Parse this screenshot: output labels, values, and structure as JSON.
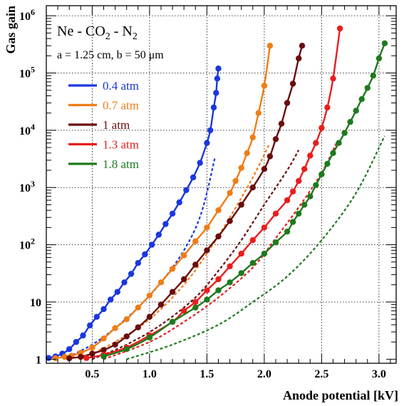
{
  "chart_data": {
    "type": "line",
    "annotation_title_parts": [
      "Ne - CO",
      "2",
      " - N",
      "2"
    ],
    "annotation_params": "a = 1.25 cm, b = 50 μm",
    "xlabel": "Anode potential [kV]",
    "ylabel": "Gas gain",
    "xlim": [
      0.1,
      3.15
    ],
    "ylim": [
      0.85,
      1500000
    ],
    "y_scale": "log",
    "grid": true,
    "legend_position": "top-left",
    "x_ticks": [
      "0.5",
      "1.0",
      "1.5",
      "2.0",
      "2.5",
      "3.0"
    ],
    "x_tick_values": [
      0.5,
      1.0,
      1.5,
      2.0,
      2.5,
      3.0
    ],
    "y_ticks": [
      {
        "value": 1,
        "base": "1",
        "exp": ""
      },
      {
        "value": 10,
        "base": "10",
        "exp": ""
      },
      {
        "value": 100,
        "base": "10",
        "exp": "2"
      },
      {
        "value": 1000,
        "base": "10",
        "exp": "3"
      },
      {
        "value": 10000,
        "base": "10",
        "exp": "4"
      },
      {
        "value": 100000,
        "base": "10",
        "exp": "5"
      },
      {
        "value": 1000000,
        "base": "10",
        "exp": "6"
      }
    ],
    "series": [
      {
        "name": "0.4 atm",
        "color": "#1a37e0",
        "points": [
          [
            0.12,
            1.05
          ],
          [
            0.18,
            1.12
          ],
          [
            0.24,
            1.25
          ],
          [
            0.3,
            1.5
          ],
          [
            0.36,
            2.0
          ],
          [
            0.42,
            2.6
          ],
          [
            0.48,
            3.9
          ],
          [
            0.54,
            5.5
          ],
          [
            0.6,
            7.5
          ],
          [
            0.66,
            11
          ],
          [
            0.72,
            15
          ],
          [
            0.78,
            22
          ],
          [
            0.84,
            31
          ],
          [
            0.9,
            48
          ],
          [
            0.96,
            68
          ],
          [
            1.02,
            100
          ],
          [
            1.08,
            150
          ],
          [
            1.14,
            230
          ],
          [
            1.2,
            350
          ],
          [
            1.26,
            550
          ],
          [
            1.32,
            900
          ],
          [
            1.38,
            1500
          ],
          [
            1.44,
            2700
          ],
          [
            1.5,
            6000
          ],
          [
            1.53,
            10000
          ],
          [
            1.56,
            25000
          ],
          [
            1.58,
            45000
          ],
          [
            1.59,
            80000
          ],
          [
            1.6,
            120000
          ]
        ],
        "dashed_fit": [
          [
            0.25,
            1.0
          ],
          [
            0.5,
            1.8
          ],
          [
            0.7,
            3.5
          ],
          [
            0.9,
            8
          ],
          [
            1.1,
            22
          ],
          [
            1.3,
            80
          ],
          [
            1.45,
            350
          ],
          [
            1.57,
            3300
          ]
        ]
      },
      {
        "name": "0.7 atm",
        "color": "#f07d16",
        "points": [
          [
            0.18,
            1.04
          ],
          [
            0.26,
            1.1
          ],
          [
            0.32,
            1.15
          ],
          [
            0.4,
            1.3
          ],
          [
            0.5,
            1.6
          ],
          [
            0.6,
            2.3
          ],
          [
            0.7,
            3.5
          ],
          [
            0.8,
            5
          ],
          [
            0.9,
            8
          ],
          [
            1.0,
            13
          ],
          [
            1.1,
            22
          ],
          [
            1.2,
            38
          ],
          [
            1.3,
            65
          ],
          [
            1.4,
            115
          ],
          [
            1.5,
            200
          ],
          [
            1.6,
            400
          ],
          [
            1.7,
            800
          ],
          [
            1.75,
            1300
          ],
          [
            1.8,
            2200
          ],
          [
            1.85,
            4000
          ],
          [
            1.9,
            7500
          ],
          [
            1.95,
            20000
          ],
          [
            2.0,
            60000
          ],
          [
            2.05,
            300000
          ]
        ],
        "dashed_fit": [
          [
            0.4,
            1.0
          ],
          [
            0.7,
            2.0
          ],
          [
            1.0,
            5
          ],
          [
            1.3,
            20
          ],
          [
            1.5,
            70
          ],
          [
            1.7,
            300
          ],
          [
            1.9,
            1500
          ],
          [
            2.04,
            5500
          ]
        ]
      },
      {
        "name": "1 atm",
        "color": "#6b0d0d",
        "points": [
          [
            0.3,
            1.04
          ],
          [
            0.4,
            1.1
          ],
          [
            0.5,
            1.25
          ],
          [
            0.6,
            1.45
          ],
          [
            0.7,
            1.8
          ],
          [
            0.8,
            2.5
          ],
          [
            0.9,
            3.6
          ],
          [
            1.0,
            5.5
          ],
          [
            1.1,
            9
          ],
          [
            1.2,
            15
          ],
          [
            1.3,
            25
          ],
          [
            1.4,
            45
          ],
          [
            1.5,
            80
          ],
          [
            1.6,
            140
          ],
          [
            1.7,
            260
          ],
          [
            1.8,
            500
          ],
          [
            1.9,
            1000
          ],
          [
            2.0,
            2100
          ],
          [
            2.05,
            3500
          ],
          [
            2.1,
            7000
          ],
          [
            2.15,
            13000
          ],
          [
            2.2,
            30000
          ],
          [
            2.25,
            65000
          ],
          [
            2.3,
            180000
          ],
          [
            2.33,
            300000
          ]
        ],
        "dashed_fit": [
          [
            0.5,
            1.0
          ],
          [
            0.8,
            1.8
          ],
          [
            1.1,
            4
          ],
          [
            1.4,
            12
          ],
          [
            1.6,
            35
          ],
          [
            1.8,
            120
          ],
          [
            2.0,
            500
          ],
          [
            2.2,
            2000
          ],
          [
            2.3,
            4500
          ]
        ]
      },
      {
        "name": "1.3 atm",
        "color": "#e81e1e",
        "points": [
          [
            0.45,
            1.05
          ],
          [
            0.6,
            1.2
          ],
          [
            0.8,
            1.6
          ],
          [
            1.0,
            2.6
          ],
          [
            1.2,
            4.5
          ],
          [
            1.3,
            7
          ],
          [
            1.4,
            10
          ],
          [
            1.5,
            16
          ],
          [
            1.6,
            25
          ],
          [
            1.7,
            42
          ],
          [
            1.8,
            70
          ],
          [
            1.9,
            120
          ],
          [
            2.0,
            200
          ],
          [
            2.1,
            350
          ],
          [
            2.2,
            600
          ],
          [
            2.25,
            850
          ],
          [
            2.3,
            1300
          ],
          [
            2.35,
            2100
          ],
          [
            2.4,
            3600
          ],
          [
            2.45,
            6000
          ],
          [
            2.5,
            11000
          ],
          [
            2.55,
            25000
          ],
          [
            2.6,
            80000
          ],
          [
            2.66,
            600000
          ]
        ],
        "dashed_fit": [
          [
            0.6,
            1.0
          ],
          [
            1.0,
            2.0
          ],
          [
            1.3,
            4.5
          ],
          [
            1.6,
            12
          ],
          [
            1.9,
            40
          ],
          [
            2.1,
            130
          ],
          [
            2.3,
            450
          ],
          [
            2.5,
            1800
          ],
          [
            2.63,
            6000
          ]
        ]
      },
      {
        "name": "1.8 atm",
        "color": "#1e7a1e",
        "points": [
          [
            0.6,
            1.12
          ],
          [
            0.8,
            1.5
          ],
          [
            1.0,
            2.4
          ],
          [
            1.2,
            4.5
          ],
          [
            1.4,
            8
          ],
          [
            1.5,
            11
          ],
          [
            1.6,
            16
          ],
          [
            1.7,
            22
          ],
          [
            1.8,
            32
          ],
          [
            1.9,
            48
          ],
          [
            2.0,
            70
          ],
          [
            2.1,
            110
          ],
          [
            2.2,
            170
          ],
          [
            2.25,
            250
          ],
          [
            2.3,
            350
          ],
          [
            2.35,
            500
          ],
          [
            2.4,
            700
          ],
          [
            2.45,
            1100
          ],
          [
            2.5,
            1700
          ],
          [
            2.55,
            2600
          ],
          [
            2.6,
            4000
          ],
          [
            2.65,
            6000
          ],
          [
            2.7,
            9000
          ],
          [
            2.75,
            14000
          ],
          [
            2.8,
            22000
          ],
          [
            2.85,
            35000
          ],
          [
            2.9,
            55000
          ],
          [
            2.95,
            90000
          ],
          [
            3.0,
            180000
          ],
          [
            3.05,
            330000
          ]
        ],
        "dashed_fit": [
          [
            0.8,
            1.0
          ],
          [
            1.2,
            1.8
          ],
          [
            1.6,
            4
          ],
          [
            1.9,
            10
          ],
          [
            2.2,
            28
          ],
          [
            2.5,
            120
          ],
          [
            2.8,
            800
          ],
          [
            3.05,
            8000
          ]
        ]
      }
    ]
  }
}
